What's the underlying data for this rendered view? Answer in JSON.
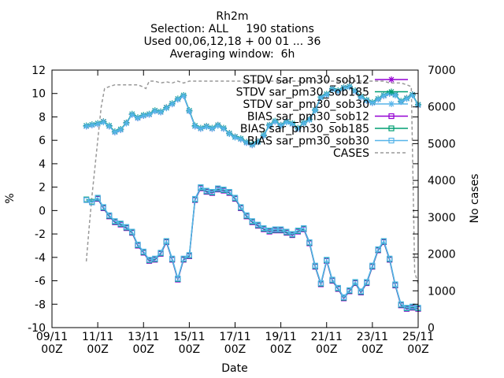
{
  "chart_data": {
    "type": "line",
    "title_lines": [
      "Rh2m",
      "Selection: ALL     190 stations",
      "Used 00,06,12,18 + 00 01 ... 36",
      "Averaging window:  6h"
    ],
    "xlabel": "Date",
    "ylabel": "%",
    "y2label": "No cases",
    "xlim": [
      "2014-11-09 00Z",
      "2014-11-25 00Z"
    ],
    "ylim": [
      -10,
      12
    ],
    "y2lim": [
      0,
      7000
    ],
    "x_ticks": [
      {
        "x": 0,
        "l1": "09/11",
        "l2": "00Z"
      },
      {
        "x": 2,
        "l1": "11/11",
        "l2": "00Z"
      },
      {
        "x": 4,
        "l1": "13/11",
        "l2": "00Z"
      },
      {
        "x": 6,
        "l1": "15/11",
        "l2": "00Z"
      },
      {
        "x": 8,
        "l1": "17/11",
        "l2": "00Z"
      },
      {
        "x": 10,
        "l1": "19/11",
        "l2": "00Z"
      },
      {
        "x": 12,
        "l1": "21/11",
        "l2": "00Z"
      },
      {
        "x": 14,
        "l1": "23/11",
        "l2": "00Z"
      },
      {
        "x": 16,
        "l1": "25/11",
        "l2": "00Z"
      }
    ],
    "y_ticks": [
      "-10",
      "-8",
      "-6",
      "-4",
      "-2",
      "0",
      "2",
      "4",
      "6",
      "8",
      "10",
      "12"
    ],
    "y2_ticks": [
      "0",
      "1000",
      "2000",
      "3000",
      "4000",
      "5000",
      "6000",
      "7000"
    ],
    "x": [
      1.5,
      1.75,
      2,
      2.25,
      2.5,
      2.75,
      3,
      3.25,
      3.5,
      3.75,
      4,
      4.25,
      4.5,
      4.75,
      5,
      5.25,
      5.5,
      5.75,
      6,
      6.25,
      6.5,
      6.75,
      7,
      7.25,
      7.5,
      7.75,
      8,
      8.25,
      8.5,
      8.75,
      9,
      9.25,
      9.5,
      9.75,
      10,
      10.25,
      10.5,
      10.75,
      11,
      11.25,
      11.5,
      11.75,
      12,
      12.25,
      12.5,
      12.75,
      13,
      13.25,
      13.5,
      13.75,
      14,
      14.25,
      14.5,
      14.75,
      15,
      15.25,
      15.5,
      15.75,
      16
    ],
    "series": [
      {
        "name": "STDV sar_pm30_sob12",
        "color": "#9400d3",
        "marker": "star",
        "values": [
          7.2,
          7.3,
          7.4,
          7.6,
          7.2,
          6.7,
          6.9,
          7.5,
          8.2,
          7.9,
          8.1,
          8.2,
          8.5,
          8.4,
          8.8,
          9.1,
          9.5,
          9.8,
          8.5,
          7.2,
          7.0,
          7.2,
          7.0,
          7.3,
          7.0,
          6.6,
          6.3,
          6.1,
          5.8,
          5.6,
          5.9,
          6.4,
          7.3,
          7.6,
          7.3,
          7.6,
          7.4,
          7.0,
          7.5,
          7.8,
          8.6,
          9.7,
          9.9,
          10.4,
          10.2,
          10.5,
          10.6,
          10.2,
          9.7,
          9.4,
          9.2,
          9.5,
          9.8,
          10.0,
          9.9,
          9.3,
          9.6,
          9.9,
          9.0
        ]
      },
      {
        "name": "STDV sar_pm30_sob185",
        "color": "#009e73",
        "marker": "star",
        "values": [
          7.25,
          7.35,
          7.45,
          7.6,
          7.25,
          6.75,
          6.95,
          7.5,
          8.25,
          7.95,
          8.15,
          8.25,
          8.55,
          8.45,
          8.8,
          9.15,
          9.55,
          9.85,
          8.55,
          7.25,
          7.05,
          7.2,
          7.05,
          7.3,
          7.05,
          6.6,
          6.3,
          6.15,
          5.85,
          5.65,
          5.9,
          6.45,
          7.3,
          7.65,
          7.3,
          7.6,
          7.45,
          7.05,
          7.5,
          7.8,
          8.6,
          9.7,
          9.95,
          10.4,
          10.25,
          10.5,
          10.6,
          10.25,
          9.75,
          9.45,
          9.25,
          9.55,
          9.85,
          10.05,
          9.9,
          9.35,
          9.6,
          9.9,
          9.05
        ]
      },
      {
        "name": "STDV sar_pm30_sob30",
        "color": "#56b4e9",
        "marker": "star",
        "values": [
          7.2,
          7.3,
          7.4,
          7.55,
          7.2,
          6.7,
          6.9,
          7.45,
          8.2,
          7.9,
          8.1,
          8.2,
          8.5,
          8.4,
          8.75,
          9.1,
          9.5,
          9.8,
          8.5,
          7.2,
          7.0,
          7.15,
          7.0,
          7.25,
          7.0,
          6.55,
          6.25,
          6.1,
          5.8,
          5.6,
          5.85,
          6.4,
          7.25,
          7.6,
          7.25,
          7.55,
          7.4,
          7.0,
          7.45,
          7.75,
          8.55,
          9.65,
          9.9,
          10.35,
          10.2,
          10.45,
          10.55,
          10.2,
          9.7,
          9.4,
          9.2,
          9.5,
          9.8,
          10.0,
          9.85,
          9.3,
          9.55,
          9.85,
          9.0
        ]
      },
      {
        "name": "BIAS sar_pm30_sob12",
        "color": "#9400d3",
        "marker": "square",
        "values": [
          0.9,
          0.7,
          1.0,
          0.2,
          -0.5,
          -1.0,
          -1.2,
          -1.5,
          -1.9,
          -3.0,
          -3.6,
          -4.3,
          -4.2,
          -3.7,
          -2.7,
          -4.2,
          -5.9,
          -4.2,
          -3.9,
          0.9,
          1.9,
          1.6,
          1.5,
          1.8,
          1.7,
          1.5,
          1.0,
          0.2,
          -0.5,
          -1.0,
          -1.3,
          -1.6,
          -1.8,
          -1.7,
          -1.7,
          -1.9,
          -2.1,
          -1.8,
          -1.6,
          -2.8,
          -4.8,
          -6.3,
          -4.3,
          -6.0,
          -6.7,
          -7.5,
          -6.9,
          -6.2,
          -7.0,
          -6.2,
          -4.8,
          -3.4,
          -2.7,
          -4.2,
          -6.4,
          -8.1,
          -8.4,
          -8.3,
          -8.4
        ]
      },
      {
        "name": "BIAS sar_pm30_sob185",
        "color": "#009e73",
        "marker": "square",
        "values": [
          0.95,
          0.75,
          1.05,
          0.25,
          -0.45,
          -0.95,
          -1.15,
          -1.45,
          -1.85,
          -2.95,
          -3.55,
          -4.25,
          -4.15,
          -3.65,
          -2.65,
          -4.15,
          -5.85,
          -4.15,
          -3.85,
          0.95,
          1.95,
          1.65,
          1.55,
          1.85,
          1.75,
          1.55,
          1.05,
          0.25,
          -0.45,
          -0.95,
          -1.25,
          -1.55,
          -1.75,
          -1.65,
          -1.65,
          -1.85,
          -2.05,
          -1.75,
          -1.55,
          -2.75,
          -4.75,
          -6.25,
          -4.25,
          -5.95,
          -6.65,
          -7.45,
          -6.85,
          -6.15,
          -6.95,
          -6.15,
          -4.75,
          -3.35,
          -2.65,
          -4.15,
          -6.35,
          -8.05,
          -8.35,
          -8.25,
          -8.35
        ]
      },
      {
        "name": "BIAS sar_pm30_sob30",
        "color": "#56b4e9",
        "marker": "square",
        "values": [
          0.9,
          0.7,
          1.1,
          0.3,
          -0.4,
          -0.9,
          -1.1,
          -1.4,
          -1.8,
          -2.9,
          -3.5,
          -4.2,
          -4.1,
          -3.6,
          -2.6,
          -4.1,
          -5.8,
          -4.1,
          -3.8,
          1.0,
          2.0,
          1.7,
          1.6,
          1.9,
          1.8,
          1.6,
          1.1,
          0.3,
          -0.4,
          -0.9,
          -1.2,
          -1.5,
          -1.7,
          -1.6,
          -1.6,
          -1.8,
          -2.0,
          -1.7,
          -1.5,
          -2.7,
          -4.7,
          -6.2,
          -4.2,
          -5.9,
          -6.6,
          -7.4,
          -6.8,
          -6.1,
          -6.9,
          -6.1,
          -4.7,
          -3.3,
          -2.6,
          -4.1,
          -6.3,
          -8.0,
          -8.3,
          -8.2,
          -8.3
        ]
      }
    ],
    "cases": {
      "name": "CASES",
      "color": "#999999",
      "axis": "y2",
      "x": [
        1.5,
        1.62,
        1.75,
        1.85,
        1.95,
        2.05,
        2.15,
        2.3,
        2.5,
        2.75,
        3.0,
        3.25,
        3.5,
        3.75,
        3.95,
        4.1,
        4.25,
        4.5,
        4.75,
        5.0,
        5.25,
        5.5,
        5.75,
        6.0,
        6.25,
        6.5,
        6.75,
        7.0,
        7.25,
        7.5,
        7.75,
        8.0,
        8.25,
        8.5,
        8.75,
        9.0,
        9.25,
        9.5,
        9.75,
        10.0,
        10.25,
        10.5,
        10.75,
        11.0,
        11.25,
        11.5,
        11.75,
        12.0,
        12.25,
        12.5,
        12.75,
        13.0,
        13.25,
        13.5,
        13.75,
        14.0,
        14.25,
        14.5,
        14.75,
        15.0,
        15.25,
        15.5,
        15.7,
        15.85,
        16.0
      ],
      "values": [
        1800,
        2700,
        3600,
        4200,
        4800,
        5400,
        6000,
        6500,
        6550,
        6600,
        6600,
        6600,
        6600,
        6600,
        6550,
        6500,
        6700,
        6700,
        6650,
        6680,
        6650,
        6700,
        6650,
        6700,
        6700,
        6700,
        6700,
        6700,
        6700,
        6700,
        6700,
        6700,
        6700,
        6700,
        6700,
        6700,
        6700,
        6700,
        6700,
        6700,
        6700,
        6700,
        6700,
        6700,
        6700,
        6700,
        6700,
        6700,
        6700,
        6700,
        6700,
        6700,
        6700,
        6700,
        6700,
        6700,
        6700,
        6700,
        6650,
        6650,
        6650,
        6600,
        6550,
        1500,
        1200
      ]
    },
    "legend_placement": "top-right",
    "grid": false
  }
}
